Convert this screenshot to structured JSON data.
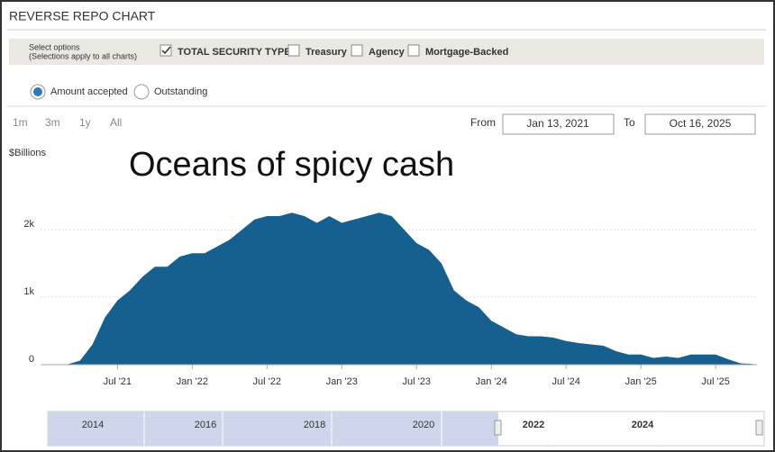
{
  "header": {
    "title": "REVERSE REPO CHART"
  },
  "options": {
    "label": "Select options",
    "note": "(Selections apply to all charts)",
    "checkboxes": [
      {
        "label": "TOTAL SECURITY TYPES",
        "checked": true
      },
      {
        "label": "Treasury",
        "checked": false
      },
      {
        "label": "Agency",
        "checked": false
      },
      {
        "label": "Mortgage-Backed",
        "checked": false
      }
    ],
    "radios": [
      {
        "label": "Amount accepted",
        "selected": true
      },
      {
        "label": "Outstanding",
        "selected": false
      }
    ]
  },
  "range": {
    "buttons": [
      "1m",
      "3m",
      "1y",
      "All"
    ],
    "from_label": "From",
    "from": "Jan 13, 2021",
    "to_label": "To",
    "to": "Oct 16, 2025"
  },
  "navigator": {
    "years": [
      "2014",
      "2016",
      "2018",
      "2020",
      "2022",
      "2024"
    ]
  },
  "chart_data": {
    "type": "area",
    "y_label": "$Billions",
    "annotation": "Oceans of spicy cash",
    "color": "#15608f",
    "grid": true,
    "x": [
      "2021-03",
      "2021-04",
      "2021-05",
      "2021-06",
      "2021-07",
      "2021-08",
      "2021-09",
      "2021-10",
      "2021-11",
      "2021-12",
      "2022-01",
      "2022-02",
      "2022-03",
      "2022-04",
      "2022-05",
      "2022-06",
      "2022-07",
      "2022-08",
      "2022-09",
      "2022-10",
      "2022-11",
      "2022-12",
      "2023-01",
      "2023-02",
      "2023-03",
      "2023-04",
      "2023-05",
      "2023-06",
      "2023-07",
      "2023-08",
      "2023-09",
      "2023-10",
      "2023-11",
      "2023-12",
      "2024-01",
      "2024-02",
      "2024-03",
      "2024-04",
      "2024-05",
      "2024-06",
      "2024-07",
      "2024-08",
      "2024-09",
      "2024-10",
      "2024-11",
      "2024-12",
      "2025-01",
      "2025-02",
      "2025-03",
      "2025-04",
      "2025-05",
      "2025-06",
      "2025-07",
      "2025-08",
      "2025-09",
      "2025-10"
    ],
    "values": [
      5,
      60,
      300,
      700,
      950,
      1100,
      1300,
      1450,
      1450,
      1600,
      1650,
      1650,
      1750,
      1850,
      2000,
      2150,
      2200,
      2200,
      2250,
      2200,
      2100,
      2200,
      2100,
      2150,
      2200,
      2250,
      2200,
      2000,
      1800,
      1700,
      1500,
      1100,
      950,
      850,
      650,
      550,
      450,
      420,
      420,
      400,
      350,
      320,
      300,
      280,
      200,
      150,
      150,
      100,
      120,
      100,
      150,
      150,
      150,
      80,
      20,
      10
    ],
    "ylim": [
      0,
      3000
    ],
    "yticks": [
      0,
      {
        "value": 1000,
        "label": "1k"
      },
      {
        "value": 2000,
        "label": "2k"
      }
    ],
    "xticks": [
      {
        "value": "2021-07",
        "label": "Jul '21"
      },
      {
        "value": "2022-01",
        "label": "Jan '22"
      },
      {
        "value": "2022-07",
        "label": "Jul '22"
      },
      {
        "value": "2023-01",
        "label": "Jan '23"
      },
      {
        "value": "2023-07",
        "label": "Jul '23"
      },
      {
        "value": "2024-01",
        "label": "Jan '24"
      },
      {
        "value": "2024-07",
        "label": "Jul '24"
      },
      {
        "value": "2025-01",
        "label": "Jan '25"
      },
      {
        "value": "2025-07",
        "label": "Jul '25"
      }
    ]
  }
}
